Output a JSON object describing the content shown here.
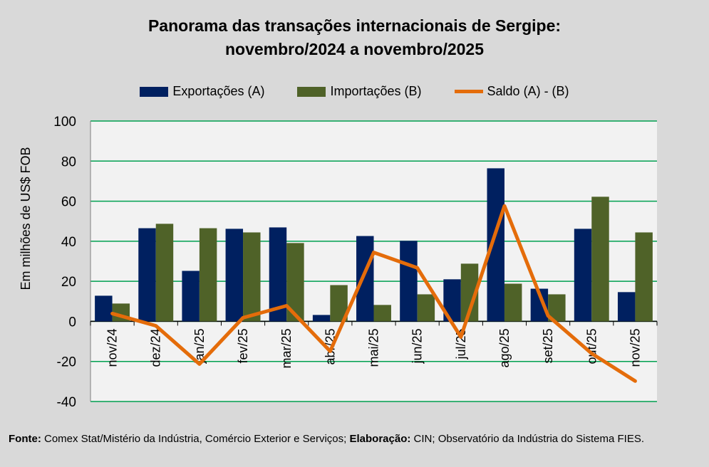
{
  "chart_data": {
    "type": "bar",
    "title": [
      "Panorama das transações internacionais de Sergipe:",
      "novembro/2024 a novembro/2025"
    ],
    "ylabel": "Em milhões de US$ FOB",
    "ylim": [
      -40,
      100
    ],
    "yticks": [
      100,
      80,
      60,
      40,
      20,
      0,
      -20,
      -40
    ],
    "grid": true,
    "legend_position": "top",
    "categories": [
      "nov/24",
      "dez/24",
      "jan/25",
      "fev/25",
      "mar/25",
      "abr/25",
      "mai/25",
      "jun/25",
      "jul/25",
      "ago/25",
      "set/25",
      "out/25",
      "nov/25"
    ],
    "series": [
      {
        "name": "Exportações (A)",
        "type": "bar",
        "color": "#002060",
        "values": [
          12.8,
          46.5,
          25.2,
          46.2,
          46.9,
          3.2,
          42.6,
          40.2,
          21.0,
          76.4,
          16.3,
          46.2,
          14.6
        ]
      },
      {
        "name": "Importações (B)",
        "type": "bar",
        "color": "#4f6228",
        "values": [
          8.9,
          48.7,
          46.5,
          44.4,
          39.1,
          18.1,
          8.2,
          13.5,
          28.8,
          18.8,
          13.5,
          62.2,
          44.4
        ]
      },
      {
        "name": "Saldo (A) - (B)",
        "type": "line",
        "color": "#e46c0a",
        "values": [
          3.9,
          -2.2,
          -21.3,
          1.8,
          7.8,
          -14.9,
          34.4,
          26.7,
          -7.8,
          57.6,
          2.8,
          -16.0,
          -29.8
        ]
      }
    ]
  },
  "source": {
    "fonte_label": "Fonte:",
    "fonte_text": " Comex Stat/Mistério da Indústria, Comércio Exterior e Serviços; ",
    "elab_label": "Elaboração:",
    "elab_text": " CIN; Observatório da Indústria do Sistema FIES."
  }
}
